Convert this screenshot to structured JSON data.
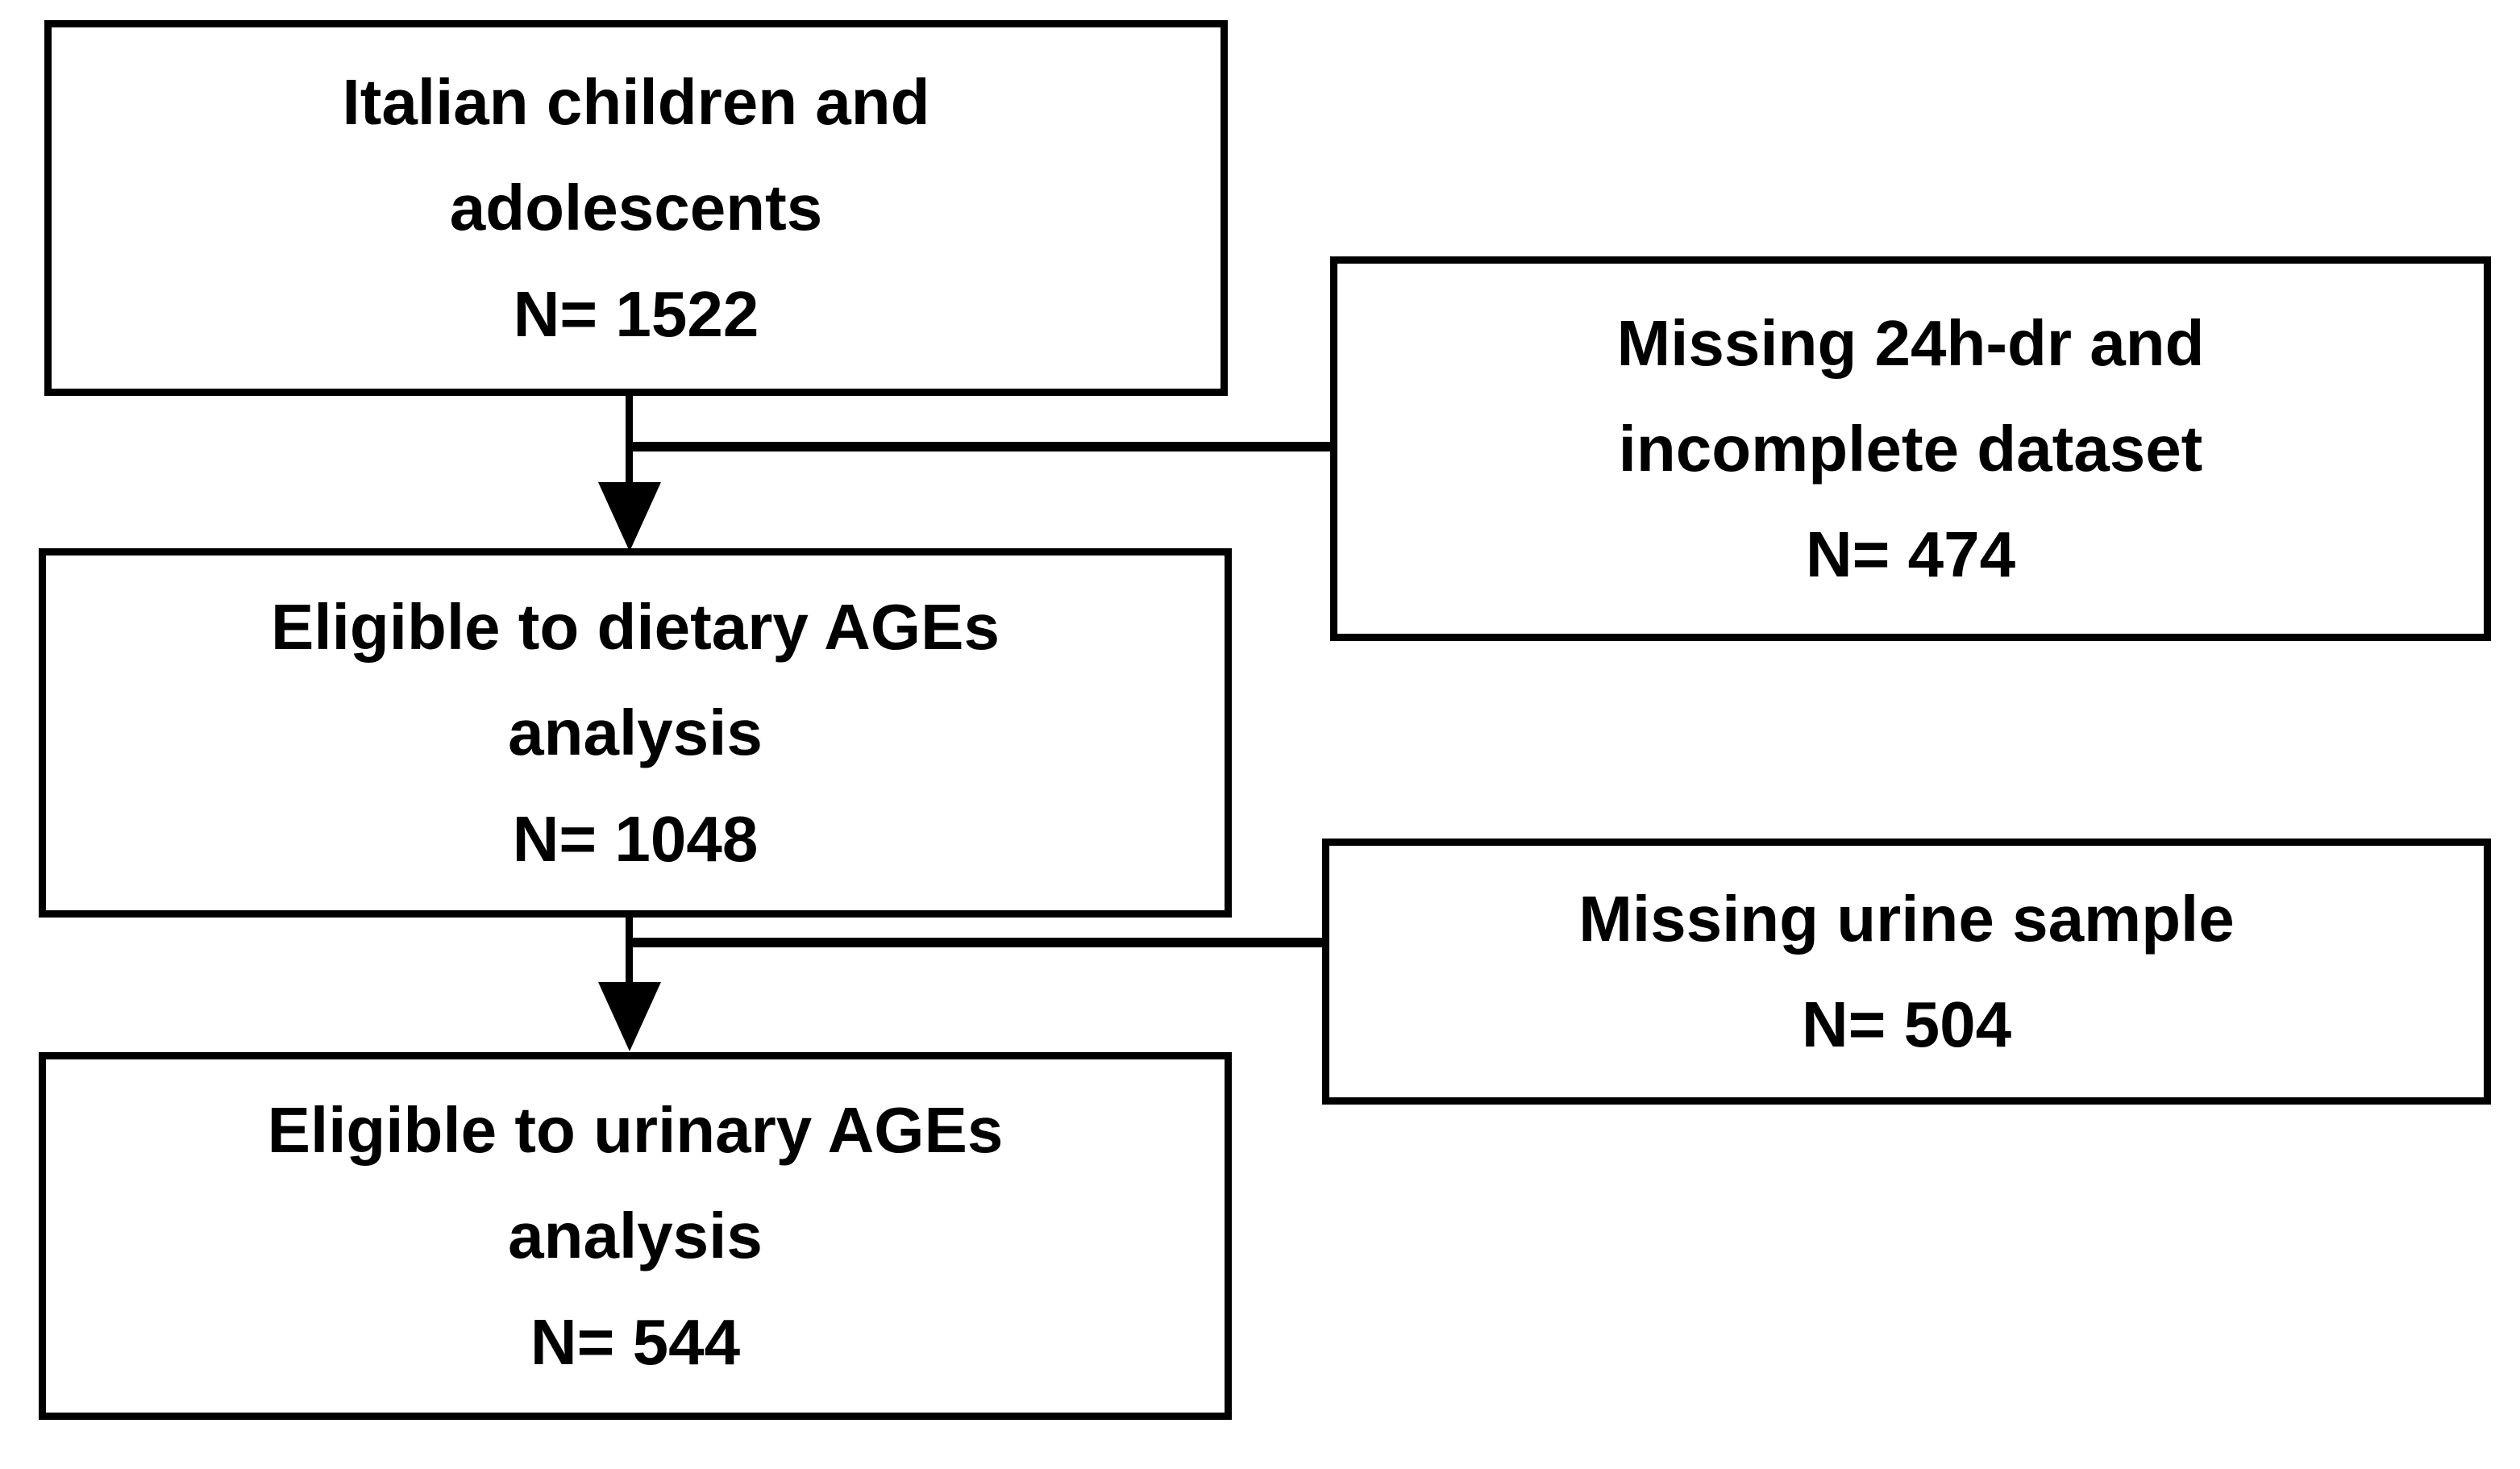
{
  "figure": {
    "type": "participant-flow-diagram",
    "background_color": "#ffffff",
    "line_color": "#000000",
    "text_color": "#000000",
    "nodes": {
      "population": {
        "lines": [
          "Italian children and",
          "adolescents",
          "N= 1522"
        ],
        "n_value": 1522
      },
      "excluded_dietary": {
        "lines": [
          "Missing 24h-dr and",
          "incomplete dataset",
          "N= 474"
        ],
        "n_value": 474
      },
      "dietary": {
        "lines": [
          "Eligible to dietary AGEs",
          "analysis",
          "N= 1048"
        ],
        "n_value": 1048
      },
      "excluded_urinary": {
        "lines": [
          "Missing urine sample",
          "N= 504"
        ],
        "n_value": 504
      },
      "urinary": {
        "lines": [
          "Eligible to urinary AGEs",
          "analysis",
          "N= 544"
        ],
        "n_value": 544
      }
    }
  }
}
